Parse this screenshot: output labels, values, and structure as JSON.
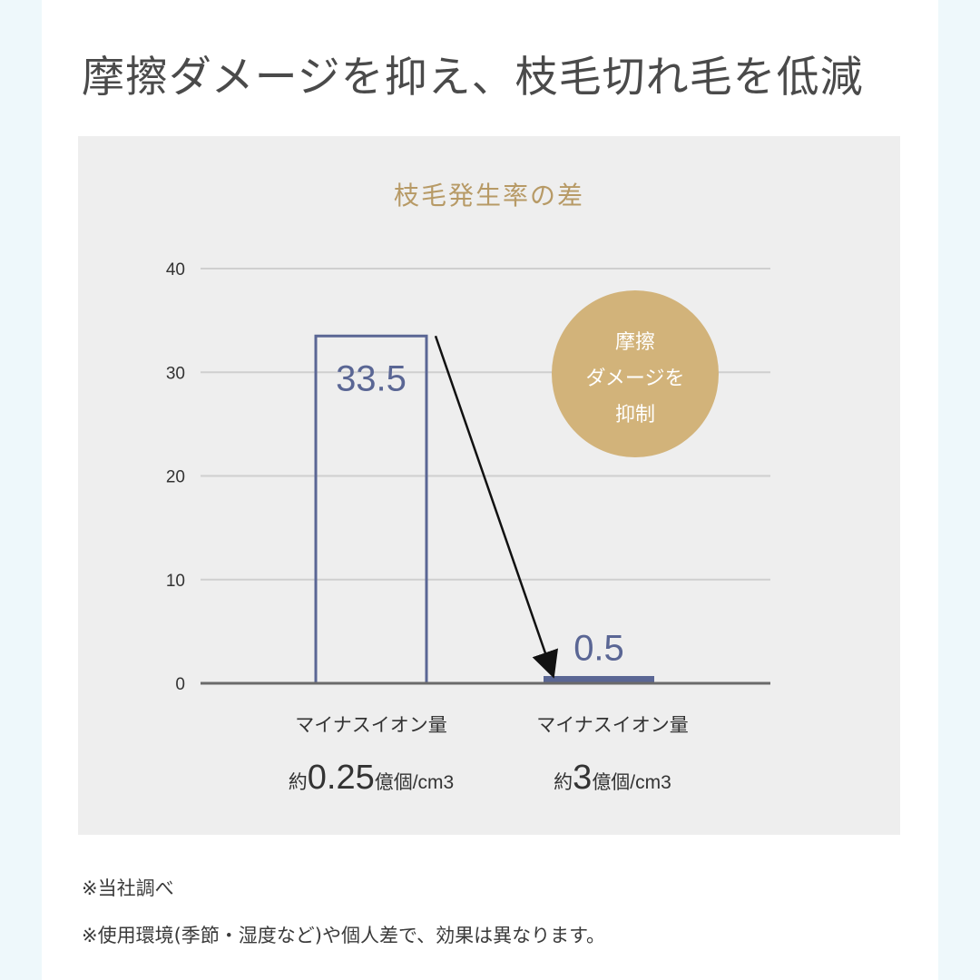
{
  "headline": "摩擦ダメージを抑え、枝毛切れ毛を低減",
  "chart_data": {
    "type": "bar",
    "title": "枝毛発生率の差",
    "ylim": [
      0,
      40
    ],
    "yticks": [
      "0",
      "10",
      "20",
      "30",
      "40"
    ],
    "grid": true,
    "categories": [
      {
        "line1": "マイナスイオン量",
        "prefix": "約",
        "amount": "0.25",
        "suffix": "億個/cm3"
      },
      {
        "line1": "マイナスイオン量",
        "prefix": "約",
        "amount": "3",
        "suffix": "億個/cm3"
      }
    ],
    "values": [
      33.5,
      0.5
    ],
    "value_labels": [
      "33.5",
      "0.5"
    ],
    "badge": [
      "摩擦",
      "ダメージを",
      "抑制"
    ],
    "colors": {
      "bar": "#5a6694",
      "title": "#b79a66",
      "badge": "#d2b37a",
      "grid": "#cfcfcf",
      "axis": "#6a6a6a"
    }
  },
  "notes": [
    "※当社調べ",
    "※使用環境(季節・湿度など)や個人差で、効果は異なります。"
  ]
}
